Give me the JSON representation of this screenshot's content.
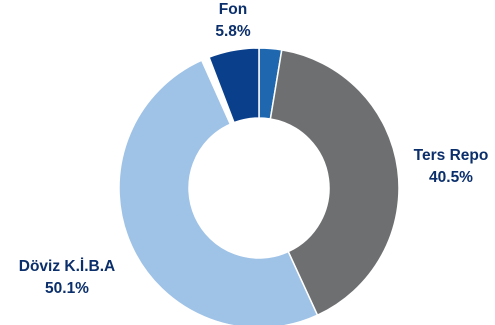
{
  "chart_data": {
    "type": "pie",
    "variant": "donut",
    "title": "",
    "start_angle_deg": 0,
    "direction": "clockwise",
    "slices": [
      {
        "label": "",
        "value_label": "",
        "value": 2.6,
        "color": "#1f68b0"
      },
      {
        "label": "Ters Repo",
        "value_label": "40.5%",
        "value": 40.5,
        "color": "#6e6f71"
      },
      {
        "label": "Döviz K.İ.B.A",
        "value_label": "50.1%",
        "value": 50.1,
        "color": "#9fc2e7"
      },
      {
        "label": "",
        "value_label": "",
        "value": 0.9,
        "color": "#ffffff"
      },
      {
        "label": "Fon",
        "value_label": "5.8%",
        "value": 5.8,
        "color": "#0a3f8c"
      }
    ],
    "label_color": "#0b2f6b",
    "legend": "none"
  }
}
